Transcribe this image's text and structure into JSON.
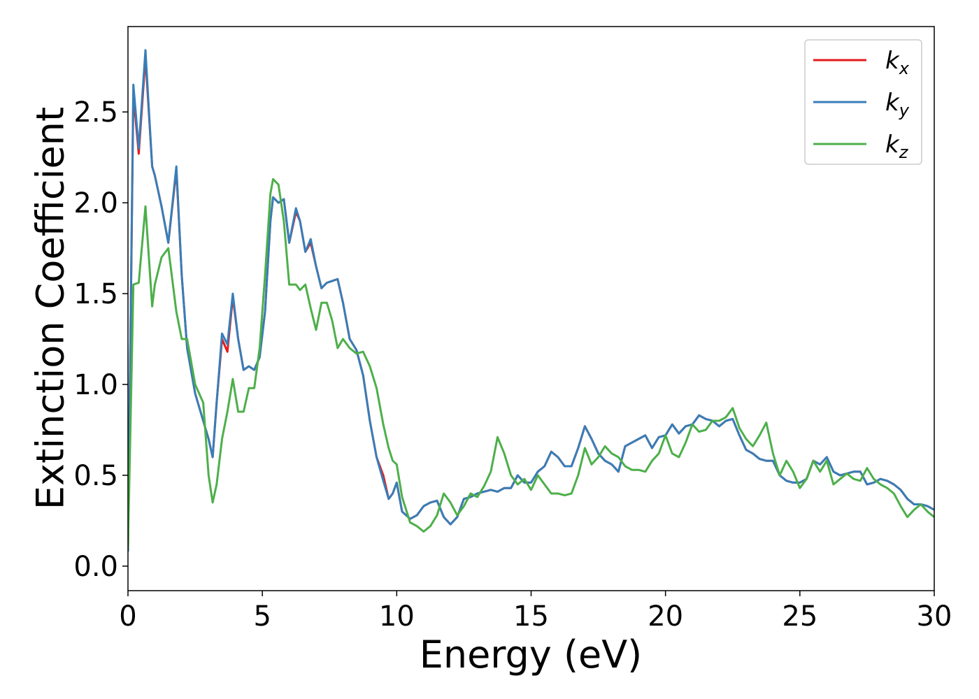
{
  "chart_data": {
    "type": "line",
    "xlabel": "Energy (eV)",
    "ylabel": "Extinction Coefficient",
    "x": [
      0,
      0.2,
      0.4,
      0.65,
      0.9,
      1.0,
      1.25,
      1.5,
      1.8,
      2.0,
      2.2,
      2.5,
      2.8,
      3.0,
      3.15,
      3.3,
      3.5,
      3.7,
      3.9,
      4.1,
      4.3,
      4.5,
      4.7,
      4.9,
      5.1,
      5.3,
      5.4,
      5.6,
      5.8,
      6.0,
      6.25,
      6.4,
      6.6,
      6.8,
      7.0,
      7.2,
      7.4,
      7.6,
      7.8,
      8.0,
      8.25,
      8.5,
      8.75,
      9.0,
      9.25,
      9.5,
      9.7,
      9.85,
      10.0,
      10.2,
      10.5,
      10.75,
      11,
      11.25,
      11.5,
      11.75,
      12,
      12.25,
      12.5,
      12.75,
      13,
      13.25,
      13.5,
      13.75,
      14,
      14.25,
      14.5,
      14.75,
      15,
      15.25,
      15.5,
      15.75,
      16,
      16.25,
      16.5,
      16.75,
      17,
      17.25,
      17.5,
      17.75,
      18,
      18.25,
      18.5,
      18.75,
      19,
      19.25,
      19.5,
      19.75,
      20,
      20.25,
      20.5,
      20.75,
      21,
      21.25,
      21.5,
      21.75,
      22,
      22.25,
      22.5,
      22.75,
      23,
      23.25,
      23.5,
      23.75,
      24,
      24.25,
      24.5,
      24.75,
      25,
      25.25,
      25.5,
      25.75,
      26,
      26.25,
      26.5,
      26.75,
      27,
      27.25,
      27.5,
      27.75,
      28,
      28.25,
      28.5,
      28.75,
      29,
      29.25,
      29.5,
      29.75,
      30
    ],
    "series": [
      {
        "name": "kx",
        "color": "#e41a1c",
        "values": [
          0.08,
          2.6,
          2.27,
          2.8,
          2.2,
          2.15,
          1.98,
          1.78,
          2.18,
          1.6,
          1.2,
          0.95,
          0.8,
          0.7,
          0.6,
          0.9,
          1.25,
          1.18,
          1.48,
          1.25,
          1.08,
          1.1,
          1.08,
          1.15,
          1.4,
          1.9,
          2.03,
          2.0,
          2.02,
          1.78,
          1.95,
          1.9,
          1.73,
          1.78,
          1.65,
          1.53,
          1.56,
          1.57,
          1.58,
          1.45,
          1.25,
          1.19,
          1.05,
          0.8,
          0.6,
          0.5,
          0.37,
          0.4,
          0.46,
          0.3,
          0.26,
          0.28,
          0.33,
          0.35,
          0.36,
          0.27,
          0.23,
          0.27,
          0.37,
          0.38,
          0.4,
          0.41,
          0.42,
          0.41,
          0.43,
          0.43,
          0.5,
          0.46,
          0.46,
          0.52,
          0.55,
          0.63,
          0.6,
          0.55,
          0.55,
          0.65,
          0.77,
          0.7,
          0.62,
          0.58,
          0.56,
          0.52,
          0.66,
          0.68,
          0.7,
          0.72,
          0.65,
          0.71,
          0.72,
          0.78,
          0.73,
          0.77,
          0.78,
          0.83,
          0.81,
          0.8,
          0.77,
          0.8,
          0.81,
          0.72,
          0.64,
          0.62,
          0.59,
          0.58,
          0.58,
          0.5,
          0.47,
          0.46,
          0.46,
          0.48,
          0.58,
          0.56,
          0.6,
          0.52,
          0.5,
          0.51,
          0.52,
          0.52,
          0.45,
          0.46,
          0.48,
          0.47,
          0.45,
          0.42,
          0.37,
          0.34,
          0.34,
          0.33,
          0.31
        ]
      },
      {
        "name": "ky",
        "color": "#377eb8",
        "values": [
          0.08,
          2.65,
          2.3,
          2.84,
          2.2,
          2.15,
          1.98,
          1.78,
          2.2,
          1.6,
          1.2,
          0.95,
          0.8,
          0.7,
          0.6,
          0.9,
          1.28,
          1.22,
          1.5,
          1.25,
          1.08,
          1.1,
          1.08,
          1.15,
          1.4,
          1.9,
          2.03,
          2.0,
          2.02,
          1.78,
          1.97,
          1.9,
          1.73,
          1.8,
          1.65,
          1.53,
          1.56,
          1.57,
          1.58,
          1.45,
          1.25,
          1.19,
          1.05,
          0.8,
          0.6,
          0.47,
          0.37,
          0.4,
          0.46,
          0.3,
          0.26,
          0.28,
          0.33,
          0.35,
          0.36,
          0.27,
          0.23,
          0.27,
          0.37,
          0.38,
          0.4,
          0.41,
          0.42,
          0.41,
          0.43,
          0.43,
          0.5,
          0.46,
          0.46,
          0.52,
          0.55,
          0.63,
          0.6,
          0.55,
          0.55,
          0.65,
          0.77,
          0.7,
          0.62,
          0.58,
          0.56,
          0.52,
          0.66,
          0.68,
          0.7,
          0.72,
          0.65,
          0.71,
          0.72,
          0.78,
          0.73,
          0.77,
          0.78,
          0.83,
          0.81,
          0.8,
          0.77,
          0.8,
          0.81,
          0.72,
          0.64,
          0.62,
          0.59,
          0.58,
          0.58,
          0.5,
          0.47,
          0.46,
          0.46,
          0.48,
          0.58,
          0.56,
          0.6,
          0.52,
          0.5,
          0.51,
          0.52,
          0.52,
          0.45,
          0.46,
          0.48,
          0.47,
          0.45,
          0.42,
          0.37,
          0.34,
          0.34,
          0.33,
          0.31
        ]
      },
      {
        "name": "kz",
        "color": "#4daf4a",
        "values": [
          0.1,
          1.55,
          1.56,
          1.98,
          1.43,
          1.55,
          1.7,
          1.75,
          1.4,
          1.25,
          1.25,
          1.0,
          0.9,
          0.5,
          0.35,
          0.45,
          0.7,
          0.85,
          1.03,
          0.85,
          0.85,
          0.98,
          0.98,
          1.2,
          1.6,
          2.05,
          2.13,
          2.1,
          1.9,
          1.55,
          1.55,
          1.52,
          1.55,
          1.42,
          1.3,
          1.45,
          1.45,
          1.35,
          1.2,
          1.25,
          1.2,
          1.17,
          1.18,
          1.1,
          0.98,
          0.78,
          0.65,
          0.58,
          0.56,
          0.38,
          0.24,
          0.22,
          0.19,
          0.22,
          0.28,
          0.4,
          0.35,
          0.28,
          0.33,
          0.4,
          0.38,
          0.44,
          0.52,
          0.71,
          0.62,
          0.5,
          0.45,
          0.48,
          0.42,
          0.5,
          0.45,
          0.4,
          0.4,
          0.39,
          0.4,
          0.5,
          0.65,
          0.56,
          0.6,
          0.66,
          0.62,
          0.6,
          0.55,
          0.53,
          0.53,
          0.52,
          0.58,
          0.62,
          0.72,
          0.62,
          0.6,
          0.68,
          0.78,
          0.74,
          0.75,
          0.8,
          0.8,
          0.82,
          0.87,
          0.76,
          0.7,
          0.66,
          0.72,
          0.79,
          0.62,
          0.5,
          0.58,
          0.52,
          0.43,
          0.48,
          0.58,
          0.52,
          0.58,
          0.45,
          0.48,
          0.51,
          0.48,
          0.47,
          0.54,
          0.48,
          0.45,
          0.43,
          0.4,
          0.33,
          0.27,
          0.31,
          0.34,
          0.3,
          0.27
        ]
      }
    ],
    "xlim": [
      0,
      30
    ],
    "xticks": [
      0,
      5,
      10,
      15,
      20,
      25,
      30
    ],
    "ylim": [
      -0.135,
      2.97
    ],
    "yticks": [
      {
        "value": 0,
        "label": "0.0"
      },
      0.5,
      {
        "value": 1,
        "label": "1.0"
      },
      1.5,
      {
        "value": 2,
        "label": "2.0"
      },
      2.5
    ],
    "legend": "upper right"
  }
}
